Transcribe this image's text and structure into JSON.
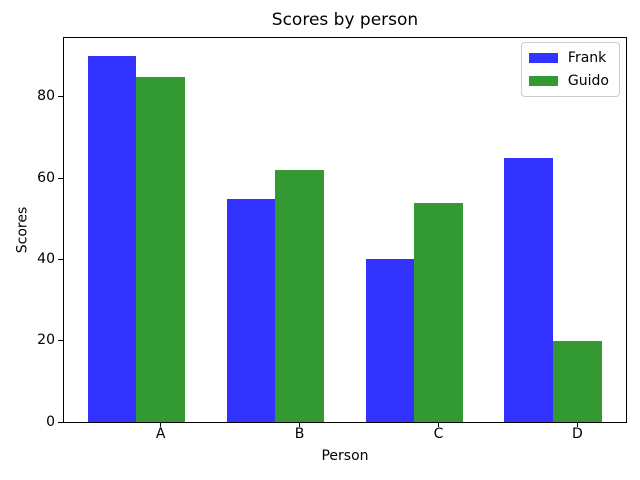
{
  "figure": {
    "background": "#ffffff",
    "axis_color": "#000000"
  },
  "chart_data": {
    "type": "bar",
    "title": "Scores by person",
    "xlabel": "Person",
    "ylabel": "Scores",
    "categories": [
      "A",
      "B",
      "C",
      "D"
    ],
    "series": [
      {
        "name": "Frank",
        "color": "#3333ff",
        "values": [
          90,
          55,
          40,
          65
        ]
      },
      {
        "name": "Guido",
        "color": "#339933",
        "values": [
          85,
          62,
          54,
          20
        ]
      }
    ],
    "bar_width": 0.35,
    "xtick_offset": 0.35,
    "xlim": [
      -0.35,
      3.7
    ],
    "ylim": [
      0,
      94.5
    ],
    "yticks": [
      0,
      20,
      40,
      60,
      80
    ],
    "grid": false,
    "legend": {
      "position": "upper right"
    }
  }
}
